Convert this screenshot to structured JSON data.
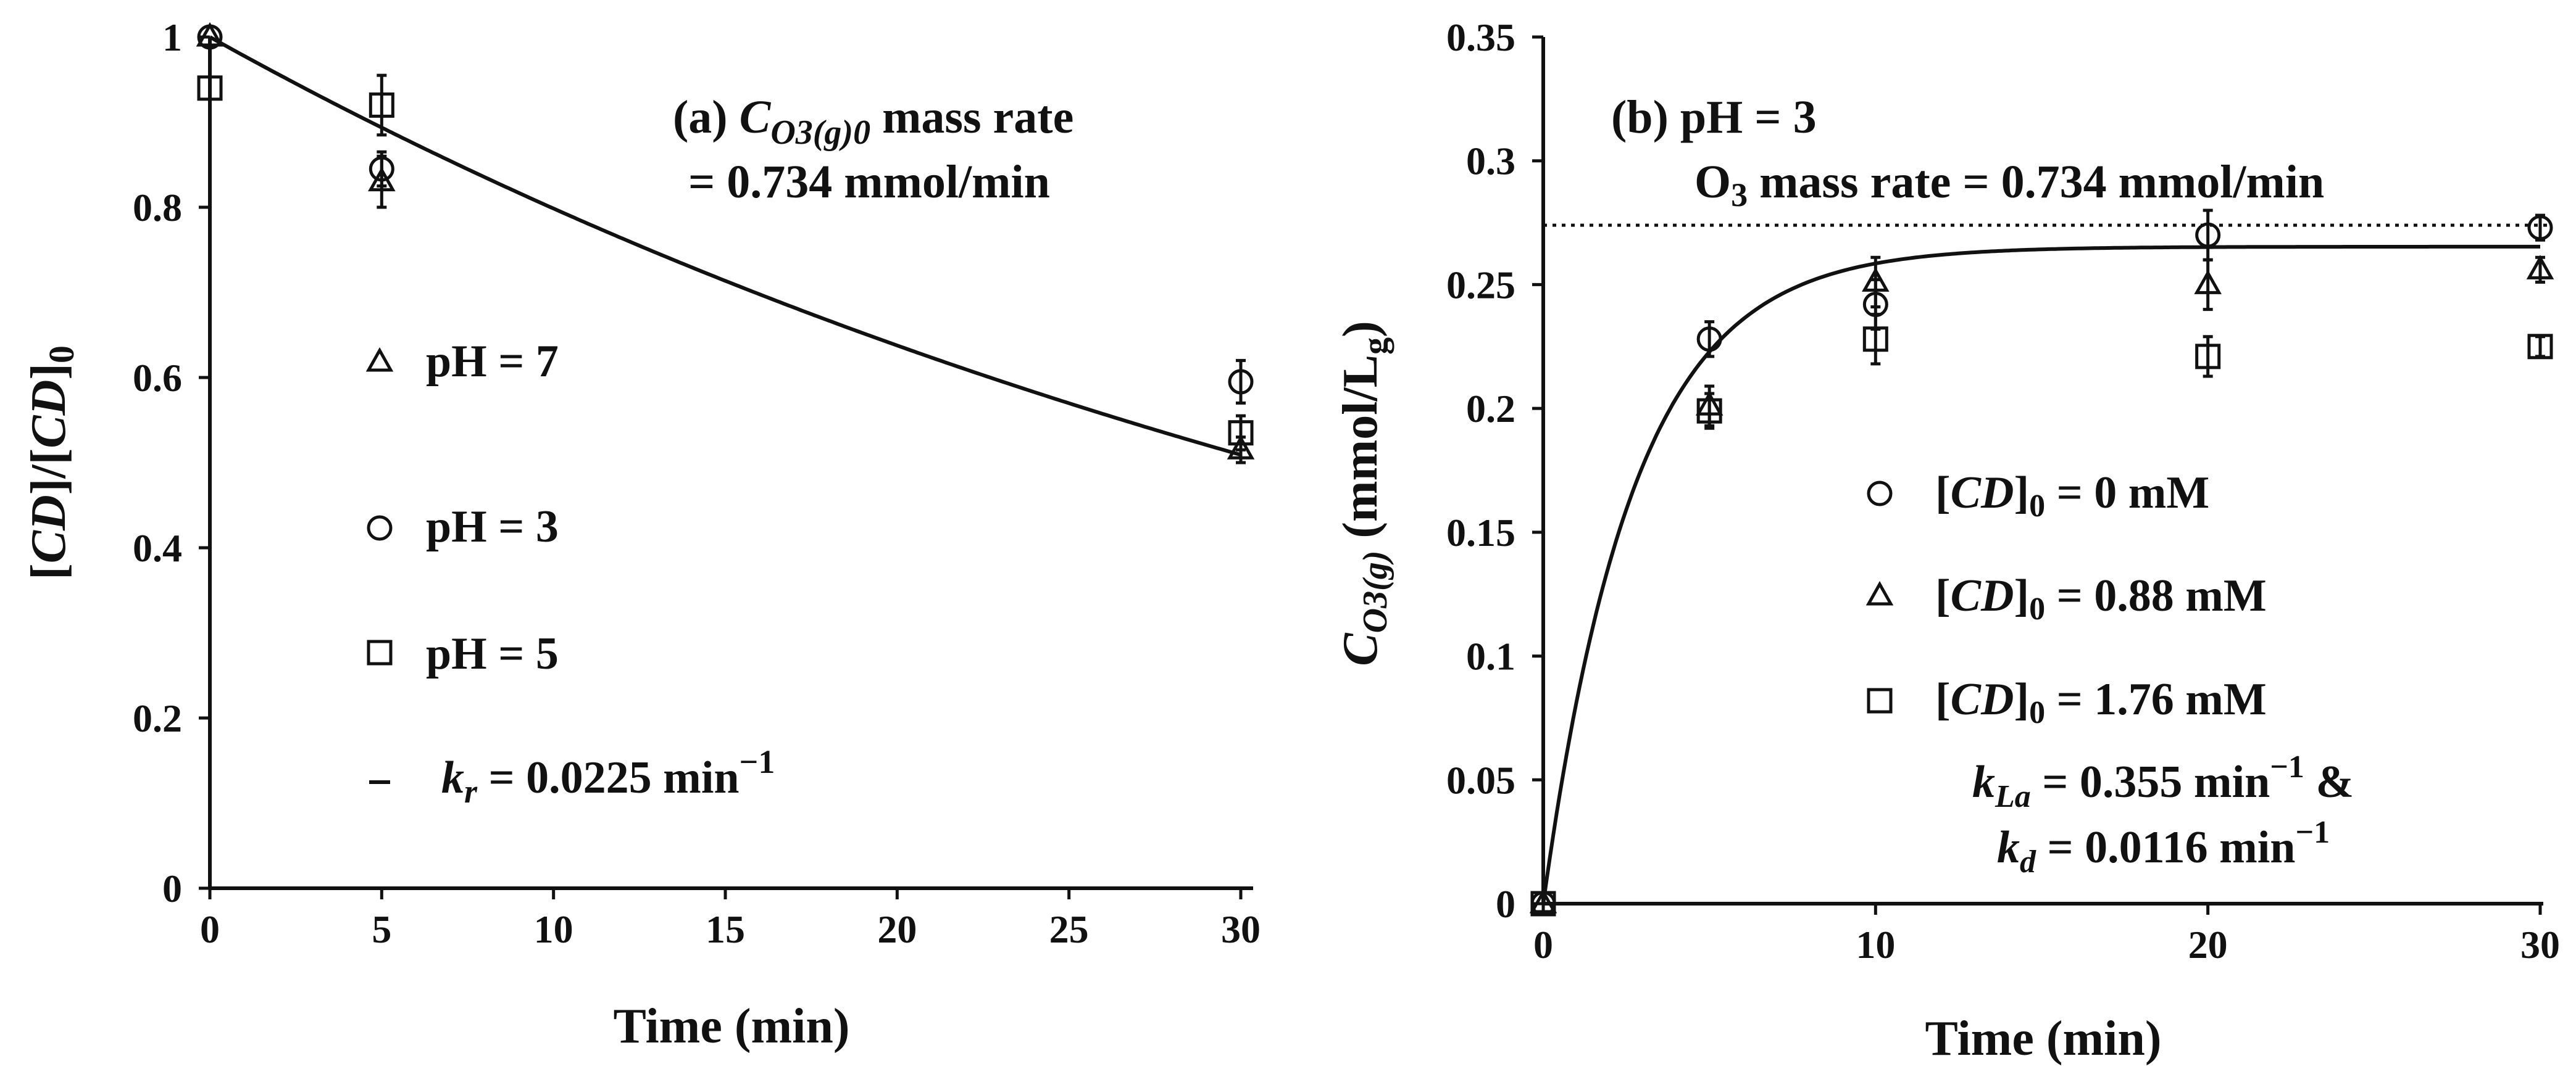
{
  "chart_data": [
    {
      "id": "a",
      "type": "scatter",
      "xlabel": "Time (min)",
      "ylabel": "[CD]/[CD]0",
      "ylabel_parts": [
        "[",
        "CD",
        "]/[",
        "CD",
        "]",
        "0"
      ],
      "x_ticks": [
        "0",
        "5",
        "10",
        "15",
        "20",
        "25",
        "30"
      ],
      "y_ticks": [
        "0",
        "0.2",
        "0.4",
        "0.6",
        "0.8",
        "1"
      ],
      "xlim": [
        0,
        30
      ],
      "ylim": [
        0,
        1
      ],
      "annotation": {
        "prefix": "(a) ",
        "var": "C",
        "sub": "O3(g)0",
        "suffix": "  mass rate",
        "line2": "= 0.734 mmol/min"
      },
      "series": [
        {
          "name": "pH = 7",
          "marker": "triangle",
          "x": [
            0,
            5,
            30
          ],
          "y": [
            1.0,
            0.83,
            0.515
          ],
          "err": [
            0.0,
            0.03,
            0.015
          ]
        },
        {
          "name": "pH = 3",
          "marker": "circle",
          "x": [
            0,
            5,
            30
          ],
          "y": [
            1.0,
            0.845,
            0.595
          ],
          "err": [
            0.0,
            0.02,
            0.025
          ]
        },
        {
          "name": "pH = 5",
          "marker": "square",
          "x": [
            0,
            5,
            30
          ],
          "y": [
            0.94,
            0.92,
            0.535
          ],
          "err": [
            0.0,
            0.035,
            0.02
          ]
        }
      ],
      "fit": {
        "label_var": "k",
        "label_sub": "r",
        "label_rest": " = 0.0225 min",
        "label_exp": "−1",
        "k": 0.0225
      }
    },
    {
      "id": "b",
      "type": "scatter",
      "xlabel": "Time (min)",
      "ylabel_var": "C",
      "ylabel_sub": "O3(g)",
      "ylabel_unit": " (mmol/L",
      "ylabel_unit_sub": "g",
      "ylabel_close": ")",
      "x_ticks": [
        "0",
        "10",
        "20",
        "30"
      ],
      "y_ticks": [
        "0",
        "0.05",
        "0.1",
        "0.15",
        "0.2",
        "0.25",
        "0.3",
        "0.35"
      ],
      "xlim": [
        0,
        30
      ],
      "ylim": [
        0,
        0.35
      ],
      "annotation": {
        "line1": "(b) pH = 3",
        "line2_pre": "O",
        "line2_sub": "3",
        "line2_post": " mass rate = 0.734 mmol/min"
      },
      "reference_line": {
        "style": "dotted",
        "y": 0.274
      },
      "series": [
        {
          "name": "[CD]0 = 0 mM",
          "label_rest": " = 0 mM",
          "marker": "circle",
          "x": [
            0,
            5,
            10,
            20,
            30
          ],
          "y": [
            0.0,
            0.228,
            0.242,
            0.27,
            0.273
          ],
          "err": [
            0.0,
            0.007,
            0.01,
            0.01,
            0.005
          ]
        },
        {
          "name": "[CD]0 = 0.88 mM",
          "label_rest": " = 0.88 mM",
          "marker": "triangle",
          "x": [
            0,
            5,
            10,
            20,
            30
          ],
          "y": [
            0.0,
            0.201,
            0.251,
            0.25,
            0.256
          ],
          "err": [
            0.0,
            0.008,
            0.01,
            0.01,
            0.005
          ]
        },
        {
          "name": "[CD]0 = 1.76 mM",
          "label_rest": " = 1.76 mM",
          "marker": "square",
          "x": [
            0,
            5,
            10,
            20,
            30
          ],
          "y": [
            0.0,
            0.199,
            0.228,
            0.221,
            0.225
          ],
          "err": [
            0.0,
            0.007,
            0.01,
            0.008,
            0.004
          ]
        }
      ],
      "fit": {
        "kla": 0.355,
        "kd": 0.0116,
        "cmax": 0.274,
        "line1_var": "k",
        "line1_sub": "La",
        "line1_rest": " = 0.355 min",
        "line1_exp": "−1",
        "line1_amp": " &",
        "line2_var": "k",
        "line2_sub": "d",
        "line2_rest": " = 0.0116 min",
        "line2_exp": "−1"
      }
    }
  ]
}
